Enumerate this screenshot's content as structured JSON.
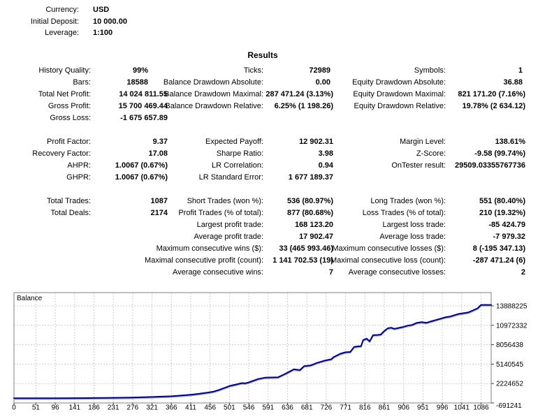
{
  "header": {
    "rows": [
      {
        "label": "Currency:",
        "value": "USD"
      },
      {
        "label": "Initial Deposit:",
        "value": "10 000.00"
      },
      {
        "label": "Leverage:",
        "value": "1:100"
      }
    ]
  },
  "results": {
    "title": "Results",
    "columns": [
      {
        "blocks": [
          [
            {
              "label": "History Quality:",
              "value": "99%",
              "short": true
            },
            {
              "label": "Bars:",
              "value": "18588",
              "short": true
            },
            {
              "label": "Total Net Profit:",
              "value": "14 024 811.55"
            },
            {
              "label": "Gross Profit:",
              "value": "15 700 469.44"
            },
            {
              "label": "Gross Loss:",
              "value": "-1 675 657.89"
            }
          ],
          [
            {
              "label": "Profit Factor:",
              "value": "9.37"
            },
            {
              "label": "Recovery Factor:",
              "value": "17.08"
            },
            {
              "label": "AHPR:",
              "value": "1.0067 (0.67%)"
            },
            {
              "label": "GHPR:",
              "value": "1.0067 (0.67%)"
            }
          ],
          [
            {
              "label": "Total Trades:",
              "value": "1087"
            },
            {
              "label": "Total Deals:",
              "value": "2174"
            }
          ]
        ]
      },
      {
        "blocks": [
          [
            {
              "label": "Ticks:",
              "value": "72989",
              "short": true
            },
            {
              "label": "Balance Drawdown Absolute:",
              "value": "0.00",
              "short": true
            },
            {
              "label": "Balance Drawdown Maximal:",
              "value": "287 471.24 (3.13%)"
            },
            {
              "label": "Balance Drawdown Relative:",
              "value": "6.25% (1 198.26)"
            }
          ],
          [
            {
              "label": "Expected Payoff:",
              "value": "12 902.31"
            },
            {
              "label": "Sharpe Ratio:",
              "value": "3.98"
            },
            {
              "label": "LR Correlation:",
              "value": "0.94"
            },
            {
              "label": "LR Standard Error:",
              "value": "1 677 189.37"
            }
          ],
          [
            {
              "label": "Short Trades (won %):",
              "value": "536 (80.97%)"
            },
            {
              "label": "Profit Trades (% of total):",
              "value": "877 (80.68%)"
            },
            {
              "label": "Largest profit trade:",
              "value": "168 123.20"
            },
            {
              "label": "Average profit trade:",
              "value": "17 902.47"
            },
            {
              "label": "Maximum consecutive wins ($):",
              "value": "33 (465 993.46)"
            },
            {
              "label": "Maximal consecutive profit (count):",
              "value": "1 141 702.53 (19)"
            },
            {
              "label": "Average consecutive wins:",
              "value": "7"
            }
          ]
        ]
      },
      {
        "blocks": [
          [
            {
              "label": "Symbols:",
              "value": "1",
              "short": true
            },
            {
              "label": "Equity Drawdown Absolute:",
              "value": "36.88",
              "short": true
            },
            {
              "label": "Equity Drawdown Maximal:",
              "value": "821 171.20 (7.16%)"
            },
            {
              "label": "Equity Drawdown Relative:",
              "value": "19.78% (2 634.12)"
            }
          ],
          [
            {
              "label": "Margin Level:",
              "value": "138.61%"
            },
            {
              "label": "Z-Score:",
              "value": "-9.58 (99.74%)"
            },
            {
              "label": "OnTester result:",
              "value": "29509.03355767736"
            }
          ],
          [
            {
              "label": "Long Trades (won %):",
              "value": "551 (80.40%)"
            },
            {
              "label": "Loss Trades (% of total):",
              "value": "210 (19.32%)"
            },
            {
              "label": "Largest loss trade:",
              "value": "-85 424.79"
            },
            {
              "label": "Average loss trade:",
              "value": "-7 979.32"
            },
            {
              "label": "Maximum consecutive losses ($):",
              "value": "8 (-195 347.13)"
            },
            {
              "label": "Maximal consecutive loss (count):",
              "value": "-287 471.24 (6)"
            },
            {
              "label": "Average consecutive losses:",
              "value": "2"
            }
          ]
        ]
      }
    ]
  },
  "chart_data": {
    "type": "line",
    "title": "Balance",
    "xlabel": "",
    "ylabel": "",
    "grid": "dashed",
    "legend_position": "top-left-inline",
    "line_color": "#000080",
    "x_ticks": [
      0,
      51,
      96,
      141,
      186,
      231,
      276,
      321,
      366,
      411,
      456,
      501,
      546,
      591,
      636,
      681,
      726,
      771,
      816,
      861,
      906,
      951,
      996,
      1041,
      1086
    ],
    "y_ticks": [
      13888225,
      10972332,
      8056438,
      5140545,
      2224652,
      -691241
    ],
    "xlim": [
      0,
      1110
    ],
    "ylim": [
      -691241,
      16600000
    ],
    "series": [
      {
        "name": "Balance",
        "points": [
          [
            0,
            10000
          ],
          [
            51,
            12000
          ],
          [
            96,
            20000
          ],
          [
            141,
            35000
          ],
          [
            186,
            55000
          ],
          [
            231,
            85000
          ],
          [
            276,
            130000
          ],
          [
            321,
            210000
          ],
          [
            350,
            270000
          ],
          [
            366,
            320000
          ],
          [
            390,
            430000
          ],
          [
            411,
            550000
          ],
          [
            430,
            680000
          ],
          [
            449,
            850000
          ],
          [
            463,
            1000000
          ],
          [
            477,
            1270000
          ],
          [
            502,
            1880000
          ],
          [
            517,
            2090000
          ],
          [
            530,
            2300000
          ],
          [
            538,
            2260000
          ],
          [
            546,
            2400000
          ],
          [
            568,
            2910000
          ],
          [
            584,
            3120000
          ],
          [
            614,
            3170000
          ],
          [
            628,
            3600000
          ],
          [
            640,
            4000000
          ],
          [
            651,
            4360000
          ],
          [
            658,
            4300000
          ],
          [
            665,
            4250000
          ],
          [
            675,
            4860000
          ],
          [
            690,
            4950000
          ],
          [
            706,
            5360000
          ],
          [
            722,
            5670000
          ],
          [
            738,
            5880000
          ],
          [
            743,
            6190000
          ],
          [
            759,
            6700000
          ],
          [
            770,
            6910000
          ],
          [
            782,
            6980000
          ],
          [
            791,
            7730000
          ],
          [
            800,
            7800000
          ],
          [
            807,
            7850000
          ],
          [
            812,
            8760000
          ],
          [
            820,
            8970000
          ],
          [
            827,
            8560000
          ],
          [
            835,
            9490000
          ],
          [
            845,
            9520000
          ],
          [
            853,
            9590000
          ],
          [
            861,
            10110000
          ],
          [
            869,
            10520000
          ],
          [
            877,
            10620000
          ],
          [
            884,
            10450000
          ],
          [
            890,
            10520000
          ],
          [
            905,
            10730000
          ],
          [
            916,
            10930000
          ],
          [
            926,
            11040000
          ],
          [
            937,
            11350000
          ],
          [
            948,
            11450000
          ],
          [
            959,
            11350000
          ],
          [
            970,
            11570000
          ],
          [
            981,
            11770000
          ],
          [
            992,
            11970000
          ],
          [
            1003,
            12180000
          ],
          [
            1014,
            12280000
          ],
          [
            1024,
            12490000
          ],
          [
            1035,
            12690000
          ],
          [
            1046,
            12800000
          ],
          [
            1056,
            12900000
          ],
          [
            1067,
            13210000
          ],
          [
            1078,
            13520000
          ],
          [
            1086,
            14034811
          ]
        ]
      }
    ]
  }
}
